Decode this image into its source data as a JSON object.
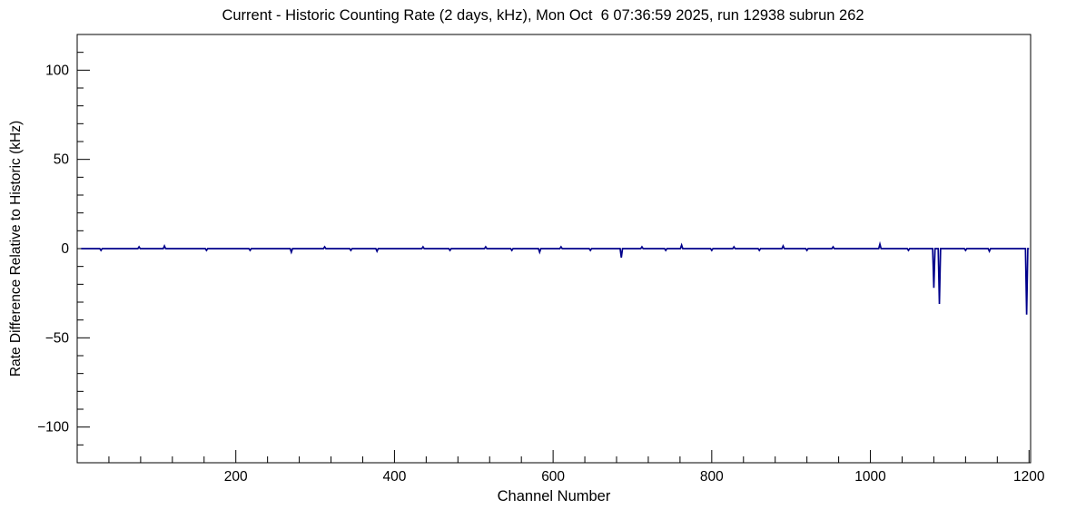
{
  "page": {
    "background": "#ffffff"
  },
  "chart_data": {
    "type": "line",
    "title": "Current - Historic Counting Rate (2 days, kHz), Mon Oct  6 07:36:59 2025, run 12938 subrun 262",
    "xlabel": "Channel Number",
    "ylabel": "Rate Difference Relative to Historic (kHz)",
    "xlim": [
      0,
      1202
    ],
    "ylim": [
      -120,
      120
    ],
    "grid": false,
    "legend": null,
    "axis_color": "#000000",
    "line_color": "#00008b",
    "x_major_ticks": [
      200,
      400,
      600,
      800,
      1000,
      1200
    ],
    "x_tick_labels": [
      "200",
      "400",
      "600",
      "800",
      "1000",
      "1200"
    ],
    "x_minor_step": 40,
    "y_major_ticks": [
      -100,
      -50,
      0,
      50,
      100
    ],
    "y_tick_labels": [
      "−100",
      "−50",
      "0",
      "50",
      "100"
    ],
    "y_minor_step": 10,
    "series": [
      {
        "name": "current-minus-historic-rate",
        "baseline": 0,
        "data_x_range": [
          5,
          1200
        ],
        "spike_half_width": 1.5,
        "spikes": [
          {
            "x": 30,
            "y": -1
          },
          {
            "x": 78,
            "y": 1
          },
          {
            "x": 110,
            "y": 1.5
          },
          {
            "x": 163,
            "y": -1
          },
          {
            "x": 218,
            "y": -1
          },
          {
            "x": 270,
            "y": -2
          },
          {
            "x": 312,
            "y": 1
          },
          {
            "x": 345,
            "y": -1
          },
          {
            "x": 378,
            "y": -1.5
          },
          {
            "x": 436,
            "y": 1
          },
          {
            "x": 470,
            "y": -1
          },
          {
            "x": 515,
            "y": 1
          },
          {
            "x": 548,
            "y": -1
          },
          {
            "x": 583,
            "y": -2
          },
          {
            "x": 610,
            "y": 1
          },
          {
            "x": 647,
            "y": -1
          },
          {
            "x": 686,
            "y": -5
          },
          {
            "x": 712,
            "y": 1
          },
          {
            "x": 742,
            "y": -1
          },
          {
            "x": 762,
            "y": 2
          },
          {
            "x": 800,
            "y": -1
          },
          {
            "x": 828,
            "y": 1
          },
          {
            "x": 860,
            "y": -1
          },
          {
            "x": 890,
            "y": 1.5
          },
          {
            "x": 920,
            "y": -1
          },
          {
            "x": 953,
            "y": 1
          },
          {
            "x": 1012,
            "y": 2.5
          },
          {
            "x": 1048,
            "y": -1
          },
          {
            "x": 1080,
            "y": -22
          },
          {
            "x": 1087,
            "y": -31
          },
          {
            "x": 1120,
            "y": -1
          },
          {
            "x": 1150,
            "y": -1.5
          },
          {
            "x": 1197,
            "y": -37
          }
        ]
      }
    ]
  }
}
